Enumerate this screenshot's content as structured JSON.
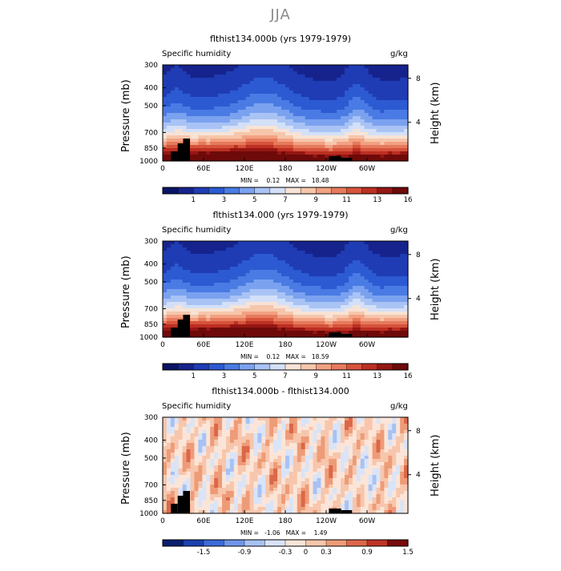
{
  "page_title": "JJA",
  "colors": {
    "humidity_scale": [
      "#0a1464",
      "#16238c",
      "#1f3cb4",
      "#2c5ad2",
      "#4a7be4",
      "#7ba2ef",
      "#a9c3f5",
      "#d3e0f8",
      "#f7e3d6",
      "#f6c6ab",
      "#f2a182",
      "#e67a5c",
      "#d6533c",
      "#bc2f22",
      "#951613",
      "#6e0a0a"
    ],
    "difference_scale": [
      "#08206e",
      "#1c42b0",
      "#3c6ad8",
      "#6f96ea",
      "#a7c2f3",
      "#d9e4f8",
      "#fbe5d8",
      "#f7c6ac",
      "#ee9b78",
      "#dc6749",
      "#bf3426",
      "#7a0c0c"
    ],
    "topography": "#000000"
  },
  "chart_data": [
    {
      "type": "heatmap",
      "title": "flthist134.000b (yrs 1979-1979)",
      "left_label": "Specific humidity",
      "right_label": "g/kg",
      "ylabel": "Pressure (mb)",
      "y2label": "Height (km)",
      "x_ticks": [
        "0",
        "60E",
        "120E",
        "180",
        "120W",
        "60W"
      ],
      "y_ticks": [
        "300",
        "400",
        "500",
        "700",
        "850",
        "1000"
      ],
      "y2_ticks": [
        "8",
        "4"
      ],
      "ylim": [
        1000,
        300
      ],
      "stats_text": "MIN =    0.12   MAX =   18.48",
      "min": 0.12,
      "max": 18.48,
      "colorbar_labels": [
        "1",
        "3",
        "5",
        "7",
        "9",
        "11",
        "13",
        "16"
      ],
      "colorbar_levels": [
        0.5,
        1,
        2,
        3,
        4,
        5,
        6,
        7,
        8,
        9,
        10,
        11,
        12,
        13,
        14,
        16
      ]
    },
    {
      "type": "heatmap",
      "title": "flthist134.000 (yrs 1979-1979)",
      "left_label": "Specific humidity",
      "right_label": "g/kg",
      "ylabel": "Pressure (mb)",
      "y2label": "Height (km)",
      "x_ticks": [
        "0",
        "60E",
        "120E",
        "180",
        "120W",
        "60W"
      ],
      "y_ticks": [
        "300",
        "400",
        "500",
        "700",
        "850",
        "1000"
      ],
      "y2_ticks": [
        "8",
        "4"
      ],
      "ylim": [
        1000,
        300
      ],
      "stats_text": "MIN =    0.12   MAX =   18.59",
      "min": 0.12,
      "max": 18.59,
      "colorbar_labels": [
        "1",
        "3",
        "5",
        "7",
        "9",
        "11",
        "13",
        "16"
      ],
      "colorbar_levels": [
        0.5,
        1,
        2,
        3,
        4,
        5,
        6,
        7,
        8,
        9,
        10,
        11,
        12,
        13,
        14,
        16
      ]
    },
    {
      "type": "heatmap",
      "title": "flthist134.000b - flthist134.000",
      "left_label": "Specific humidity",
      "right_label": "g/kg",
      "ylabel": "Pressure (mb)",
      "y2label": "Height (km)",
      "x_ticks": [
        "0",
        "60E",
        "120E",
        "180",
        "120W",
        "60W"
      ],
      "y_ticks": [
        "300",
        "400",
        "500",
        "700",
        "850",
        "1000"
      ],
      "y2_ticks": [
        "8",
        "4"
      ],
      "ylim": [
        1000,
        300
      ],
      "stats_text": "MIN =   -1.06   MAX =    1.49",
      "min": -1.06,
      "max": 1.49,
      "colorbar_labels": [
        "-1.5",
        "-0.9",
        "-0.3",
        "0",
        "0.3",
        "0.9",
        "1.5"
      ],
      "colorbar_levels": [
        -1.8,
        -1.5,
        -1.2,
        -0.9,
        -0.6,
        -0.3,
        0,
        0.3,
        0.6,
        0.9,
        1.2,
        1.5
      ]
    }
  ]
}
